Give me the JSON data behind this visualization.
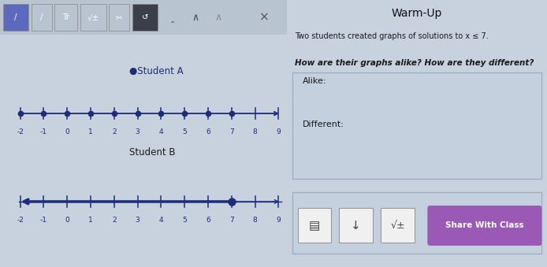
{
  "title": "Warm-Up",
  "subtitle": "Two students created graphs of solutions to x ≤ 7.",
  "question": "How are their graphs alike? How are they different?",
  "alike_label": "Alike:",
  "different_label": "Different:",
  "student_a_label": "●Student A",
  "student_b_label": "Student B",
  "x_min": -2,
  "x_max": 9,
  "tick_values": [
    -2,
    -1,
    0,
    1,
    2,
    3,
    4,
    5,
    6,
    7,
    8,
    9
  ],
  "student_a_dots": [
    -2,
    -1,
    0,
    1,
    2,
    3,
    4,
    5,
    6,
    7
  ],
  "student_b_endpoint": 7,
  "dot_color": "#1e2d78",
  "line_color": "#1e2d78",
  "bg_left": "#d0dce8",
  "bg_right": "#cdd5e0",
  "bg_overall": "#c8d2df",
  "toolbar_bg": "#b8c4d0",
  "btn_highlight": "#5b6abf",
  "btn_dark": "#3a3f4a",
  "axis_color": "#1e2d78",
  "tick_color": "#1e2d78",
  "label_color": "#1e2d78",
  "share_btn_color": "#9b59b6",
  "share_btn_text": "Share With Class",
  "answer_box_color": "#c5d0de",
  "answer_box_edge": "#a0afc0",
  "bottom_bar_color": "#c5d0de",
  "white_btn": "#f0f0f0",
  "text_dark": "#1a1a1a",
  "text_mid": "#333333"
}
